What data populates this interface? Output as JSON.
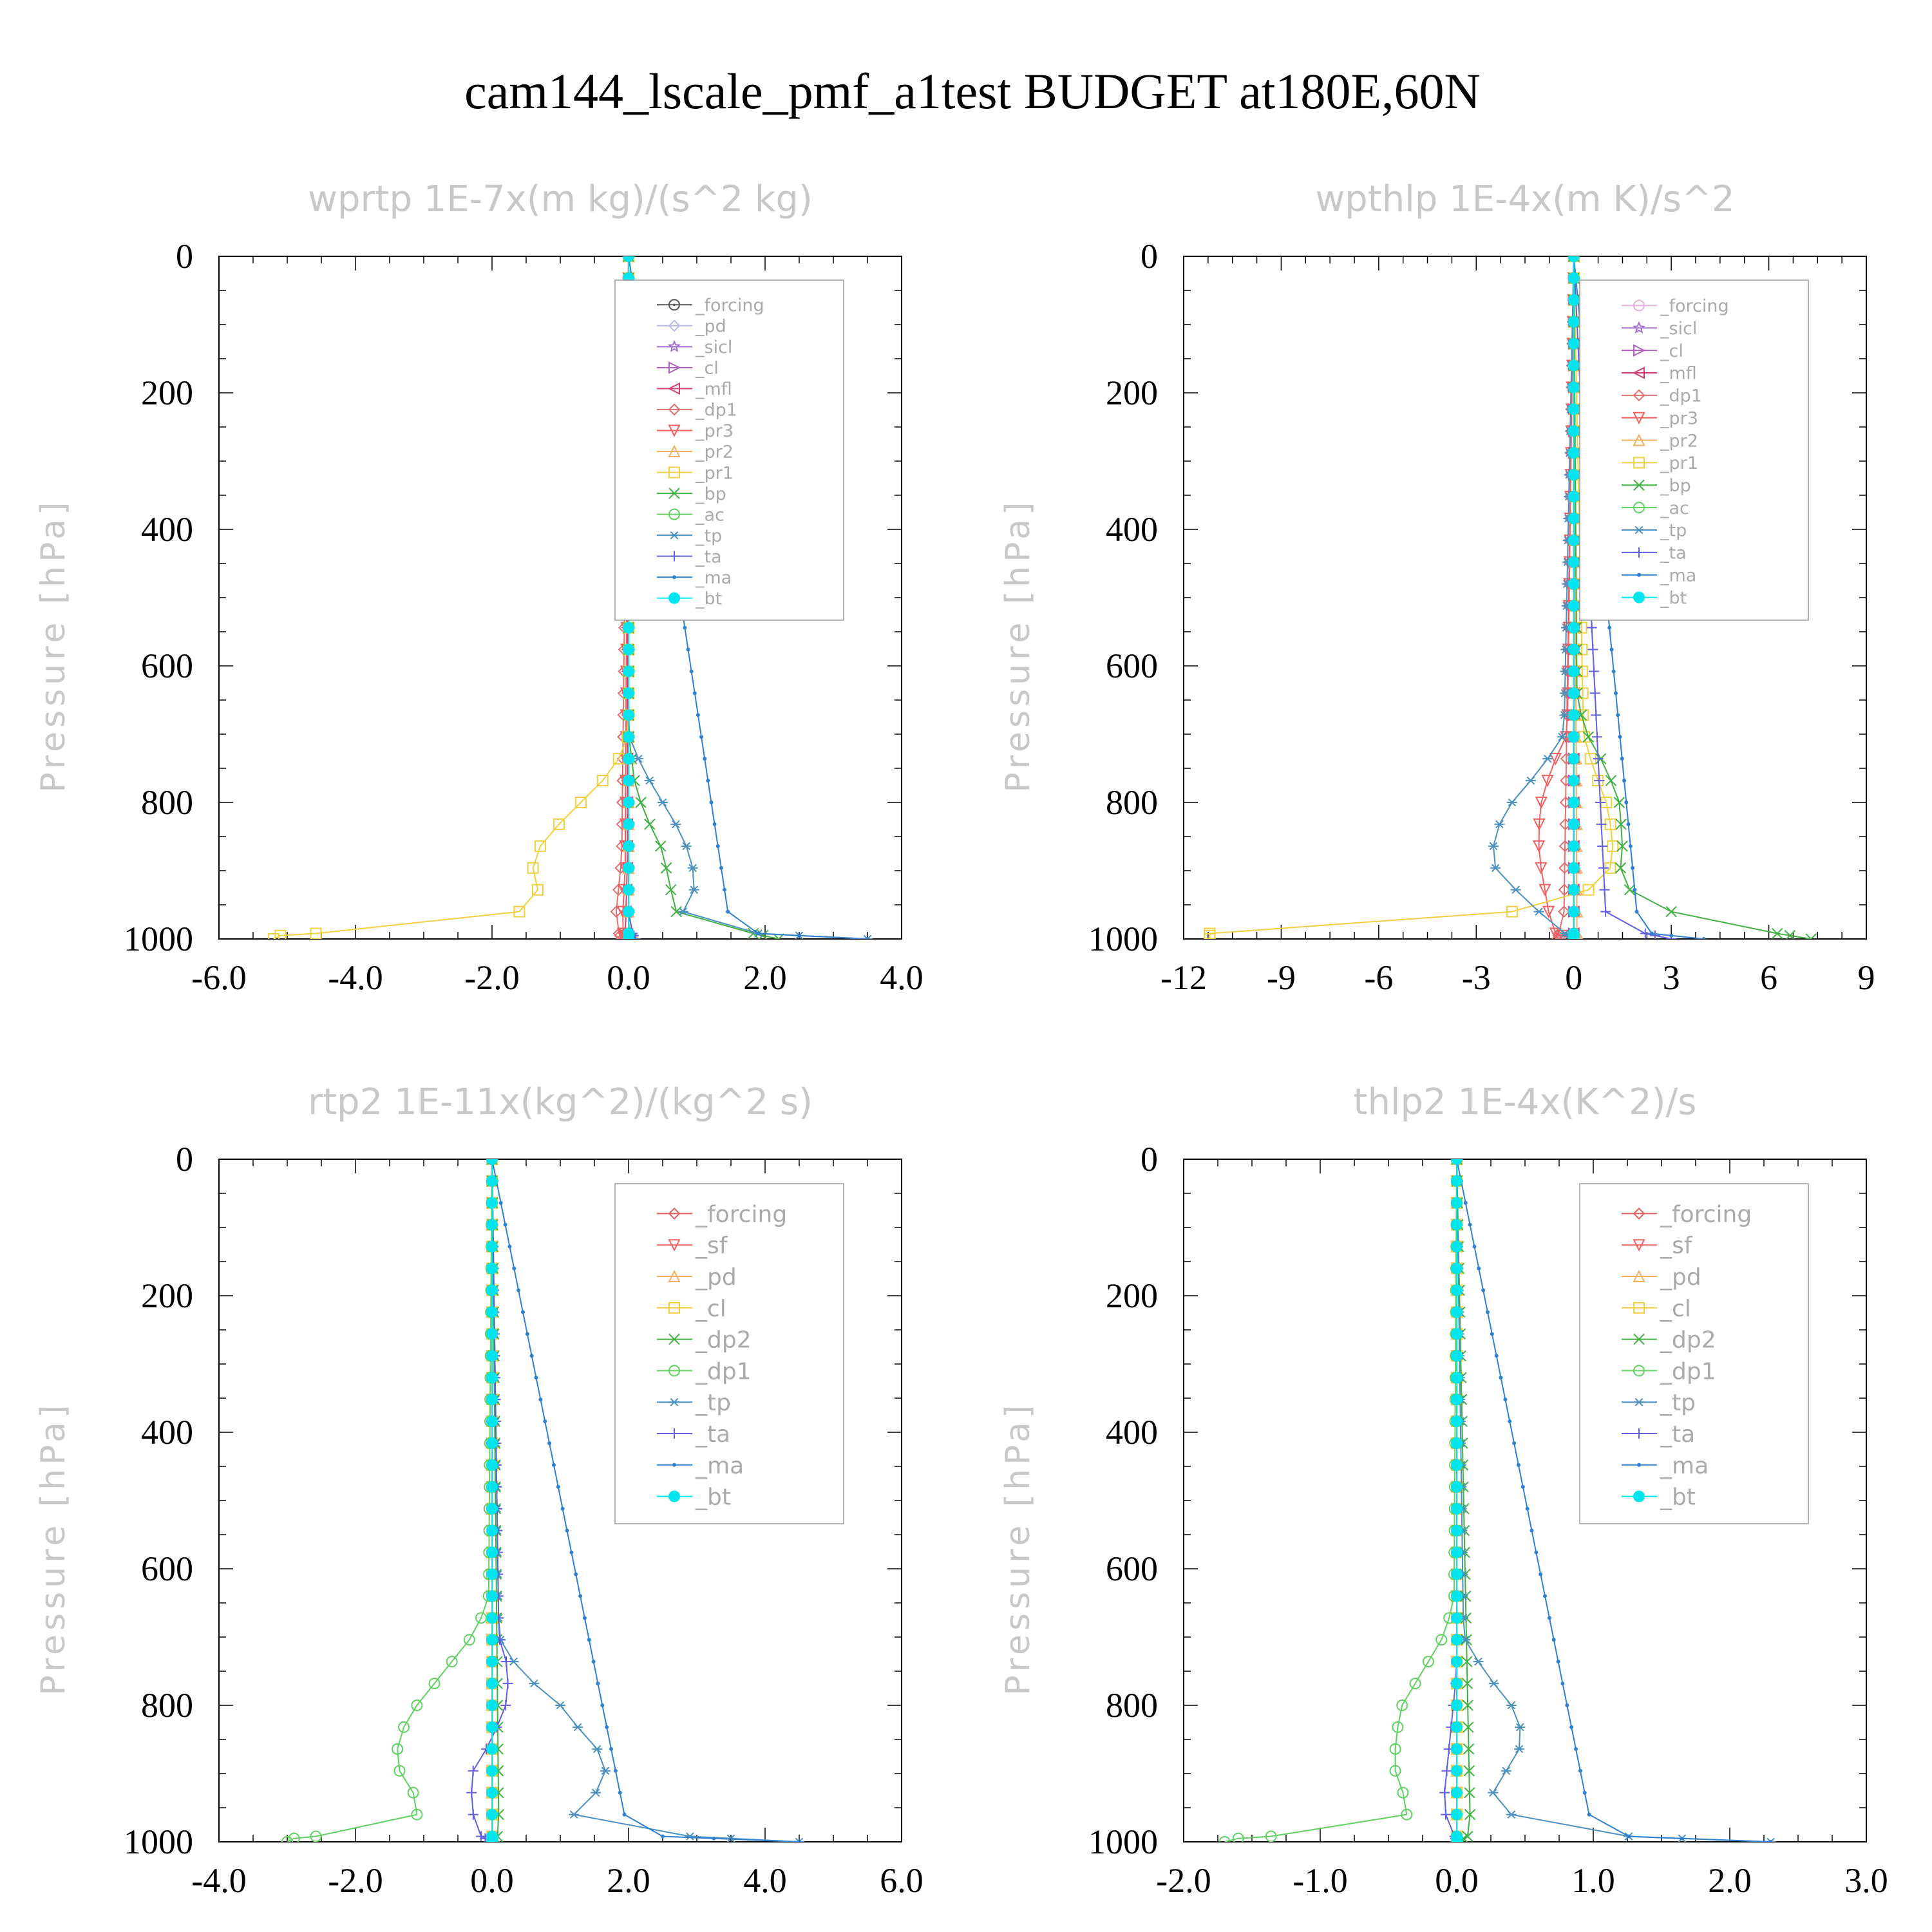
{
  "figure_title": "cam144_lscale_pmf_a1test  BUDGET at180E,60N",
  "chart_data": [
    {
      "type": "line",
      "title": "wprtp  1E-7x(m kg)/(s^2 kg)",
      "ylabel": "Pressure [hPa]",
      "xlim": [
        -6.0,
        4.0
      ],
      "ylim": [
        1000,
        0
      ],
      "xticks": [
        "-6.0",
        "-4.0",
        "-2.0",
        "0.0",
        "2.0",
        "4.0"
      ],
      "xtick_values": [
        -6,
        -4,
        -2,
        0,
        2,
        4
      ],
      "yticks": [
        "0",
        "200",
        "400",
        "600",
        "800",
        "1000"
      ],
      "ytick_values": [
        0,
        200,
        400,
        600,
        800,
        1000
      ],
      "legend_position": "top-right",
      "series": [
        {
          "name": "_forcing",
          "color": "#555555",
          "marker": "circle-dot",
          "y": [
            0,
            800,
            900,
            1000
          ],
          "x": [
            0,
            0,
            0,
            0
          ]
        },
        {
          "name": "_pd",
          "color": "#b8b8f0",
          "marker": "diamond",
          "y": [
            0,
            800,
            1000
          ],
          "x": [
            0,
            0,
            0
          ]
        },
        {
          "name": "_sicl",
          "color": "#a070d0",
          "marker": "star",
          "y": [
            0,
            800,
            1000
          ],
          "x": [
            0,
            0,
            0
          ]
        },
        {
          "name": "_cl",
          "color": "#b060c0",
          "marker": "tri-right",
          "y": [
            0,
            800,
            1000
          ],
          "x": [
            0,
            0,
            0
          ]
        },
        {
          "name": "_mfl",
          "color": "#d04070",
          "marker": "tri-left",
          "y": [
            0,
            900,
            1000
          ],
          "x": [
            0,
            -0.02,
            -0.05
          ]
        },
        {
          "name": "_dp1",
          "color": "#e07070",
          "marker": "diamond",
          "y": [
            0,
            880,
            980,
            1000
          ],
          "x": [
            0,
            -0.1,
            -0.2,
            -0.1
          ]
        },
        {
          "name": "_pr3",
          "color": "#f06060",
          "marker": "tri-down",
          "y": [
            0,
            900,
            990,
            1000
          ],
          "x": [
            0,
            -0.05,
            -0.1,
            0
          ]
        },
        {
          "name": "_pr2",
          "color": "#f0b060",
          "marker": "tri-up",
          "y": [
            0,
            990,
            1000
          ],
          "x": [
            0,
            0,
            0.1
          ]
        },
        {
          "name": "_pr1",
          "color": "#f0d040",
          "marker": "square",
          "y": [
            0,
            700,
            750,
            800,
            850,
            880,
            900,
            940,
            960,
            980,
            995,
            1000
          ],
          "x": [
            0,
            0,
            -0.2,
            -0.7,
            -1.2,
            -1.4,
            -1.4,
            -1.3,
            -1.6,
            -2.5,
            -5.1,
            -5.2
          ]
        },
        {
          "name": "_bp",
          "color": "#40b040",
          "marker": "x",
          "y": [
            0,
            700,
            780,
            830,
            870,
            920,
            960,
            985,
            1000
          ],
          "x": [
            0,
            0,
            0.1,
            0.3,
            0.5,
            0.6,
            0.7,
            1.5,
            2.2
          ]
        },
        {
          "name": "_ac",
          "color": "#60d060",
          "marker": "circle",
          "y": [
            0,
            1000
          ],
          "x": [
            0,
            0
          ]
        },
        {
          "name": "_tp",
          "color": "#4a90c0",
          "marker": "asterisk",
          "y": [
            0,
            700,
            750,
            800,
            850,
            880,
            920,
            960,
            990,
            1000
          ],
          "x": [
            0,
            0,
            0.2,
            0.5,
            0.8,
            0.9,
            1.0,
            0.8,
            1.5,
            3.5
          ]
        },
        {
          "name": "_ta",
          "color": "#6060e0",
          "marker": "plus",
          "y": [
            0,
            980,
            1000
          ],
          "x": [
            0,
            0,
            0.1
          ]
        },
        {
          "name": "_ma",
          "color": "#3080d0",
          "marker": "dot",
          "y": [
            0,
            990,
            1000
          ],
          "x": [
            0,
            1.5,
            3.5
          ]
        },
        {
          "name": "_bt",
          "color": "#00e5ee",
          "marker": "filled-circle",
          "y": [
            0,
            1000
          ],
          "x": [
            0,
            0
          ]
        }
      ]
    },
    {
      "type": "line",
      "title": "wpthlp  1E-4x(m K)/s^2",
      "ylabel": "Pressure [hPa]",
      "xlim": [
        -12,
        9
      ],
      "ylim": [
        1000,
        0
      ],
      "xticks": [
        "-12",
        "-9",
        "-6",
        "-3",
        "0",
        "3",
        "6",
        "9"
      ],
      "xtick_values": [
        -12,
        -9,
        -6,
        -3,
        0,
        3,
        6,
        9
      ],
      "yticks": [
        "0",
        "200",
        "400",
        "600",
        "800",
        "1000"
      ],
      "ytick_values": [
        0,
        200,
        400,
        600,
        800,
        1000
      ],
      "legend_position": "top-right",
      "series": [
        {
          "name": "_forcing",
          "color": "#e0b0e0",
          "marker": "circle",
          "y": [
            0,
            1000
          ],
          "x": [
            0,
            0
          ]
        },
        {
          "name": "_sicl",
          "color": "#a070d0",
          "marker": "star",
          "y": [
            0,
            1000
          ],
          "x": [
            0,
            0
          ]
        },
        {
          "name": "_cl",
          "color": "#b060c0",
          "marker": "tri-right",
          "y": [
            0,
            1000
          ],
          "x": [
            0,
            0
          ]
        },
        {
          "name": "_mfl",
          "color": "#d04070",
          "marker": "tri-left",
          "y": [
            0,
            1000
          ],
          "x": [
            0,
            0
          ]
        },
        {
          "name": "_dp1",
          "color": "#e07070",
          "marker": "diamond",
          "y": [
            0,
            960,
            1000
          ],
          "x": [
            0,
            -0.3,
            -0.5
          ]
        },
        {
          "name": "_pr3",
          "color": "#f06060",
          "marker": "tri-down",
          "y": [
            0,
            700,
            750,
            800,
            850,
            900,
            950,
            990,
            1000
          ],
          "x": [
            0,
            -0.2,
            -0.7,
            -1.0,
            -1.1,
            -1.0,
            -0.8,
            -0.7,
            0
          ]
        },
        {
          "name": "_pr2",
          "color": "#f0b060",
          "marker": "tri-up",
          "y": [
            0,
            1000
          ],
          "x": [
            0,
            0.1
          ]
        },
        {
          "name": "_pr1",
          "color": "#f0d040",
          "marker": "square",
          "y": [
            0,
            700,
            750,
            800,
            850,
            890,
            920,
            950,
            975,
            990,
            1000
          ],
          "x": [
            0,
            0.3,
            0.6,
            1.0,
            1.2,
            1.2,
            0.8,
            -0.5,
            -4,
            -11.2,
            -11.2
          ]
        },
        {
          "name": "_bp",
          "color": "#40b040",
          "marker": "x",
          "y": [
            0,
            650,
            700,
            750,
            800,
            860,
            920,
            960,
            990,
            1000
          ],
          "x": [
            0,
            0.1,
            0.4,
            1.0,
            1.4,
            1.5,
            1.4,
            3.0,
            6.0,
            7.3
          ]
        },
        {
          "name": "_ac",
          "color": "#60d060",
          "marker": "circle",
          "y": [
            0,
            1000
          ],
          "x": [
            0,
            0
          ]
        },
        {
          "name": "_tp",
          "color": "#4a90c0",
          "marker": "asterisk",
          "y": [
            0,
            700,
            750,
            800,
            850,
            900,
            950,
            985,
            1000
          ],
          "x": [
            0,
            -0.3,
            -1.0,
            -1.9,
            -2.5,
            -2.4,
            -1.3,
            -0.5,
            0
          ]
        },
        {
          "name": "_ta",
          "color": "#6060e0",
          "marker": "plus",
          "y": [
            0,
            980,
            1000
          ],
          "x": [
            0,
            1.0,
            3.0
          ]
        },
        {
          "name": "_ma",
          "color": "#3080d0",
          "marker": "dot",
          "y": [
            0,
            990,
            1000
          ],
          "x": [
            0,
            2.0,
            4.0
          ]
        },
        {
          "name": "_bt",
          "color": "#00e5ee",
          "marker": "filled-circle",
          "y": [
            0,
            1000
          ],
          "x": [
            0,
            0
          ]
        }
      ]
    },
    {
      "type": "line",
      "title": "rtp2  1E-11x(kg^2)/(kg^2 s)",
      "ylabel": "Pressure [hPa]",
      "xlim": [
        -4.0,
        6.0
      ],
      "ylim": [
        1000,
        0
      ],
      "xticks": [
        "-4.0",
        "-2.0",
        "0.0",
        "2.0",
        "4.0",
        "6.0"
      ],
      "xtick_values": [
        -4,
        -2,
        0,
        2,
        4,
        6
      ],
      "yticks": [
        "0",
        "200",
        "400",
        "600",
        "800",
        "1000"
      ],
      "ytick_values": [
        0,
        200,
        400,
        600,
        800,
        1000
      ],
      "legend_position": "top-right",
      "series": [
        {
          "name": "_forcing",
          "color": "#e06060",
          "marker": "diamond",
          "y": [
            0,
            1000
          ],
          "x": [
            0,
            0
          ]
        },
        {
          "name": "_sf",
          "color": "#f06060",
          "marker": "tri-down",
          "y": [
            0,
            1000
          ],
          "x": [
            0,
            0
          ]
        },
        {
          "name": "_pd",
          "color": "#f0b060",
          "marker": "tri-up",
          "y": [
            0,
            1000
          ],
          "x": [
            0,
            0
          ]
        },
        {
          "name": "_cl",
          "color": "#f0d040",
          "marker": "square",
          "y": [
            0,
            1000
          ],
          "x": [
            0,
            0
          ]
        },
        {
          "name": "_dp2",
          "color": "#40b040",
          "marker": "x",
          "y": [
            0,
            990,
            1000
          ],
          "x": [
            0,
            0.1,
            0
          ]
        },
        {
          "name": "_dp1",
          "color": "#60d060",
          "marker": "circle",
          "y": [
            0,
            650,
            700,
            750,
            800,
            850,
            900,
            950,
            980,
            995,
            1000
          ],
          "x": [
            0,
            -0.05,
            -0.3,
            -0.7,
            -1.1,
            -1.4,
            -1.35,
            -1.0,
            -1.3,
            -2.9,
            -3.0
          ]
        },
        {
          "name": "_tp",
          "color": "#4a90c0",
          "marker": "asterisk",
          "y": [
            0,
            700,
            750,
            800,
            850,
            880,
            920,
            960,
            990,
            1000
          ],
          "x": [
            0,
            0.1,
            0.4,
            1.0,
            1.4,
            1.7,
            1.6,
            1.2,
            2.5,
            4.5
          ]
        },
        {
          "name": "_ta",
          "color": "#6060e0",
          "marker": "plus",
          "y": [
            0,
            700,
            750,
            800,
            850,
            900,
            950,
            990,
            1000
          ],
          "x": [
            0,
            0.1,
            0.25,
            0.2,
            0,
            -0.3,
            -0.3,
            -0.2,
            0
          ]
        },
        {
          "name": "_ma",
          "color": "#3080d0",
          "marker": "dot",
          "y": [
            0,
            990,
            1000
          ],
          "x": [
            0,
            2.0,
            4.5
          ]
        },
        {
          "name": "_bt",
          "color": "#00e5ee",
          "marker": "filled-circle",
          "y": [
            0,
            1000
          ],
          "x": [
            0,
            0
          ]
        }
      ]
    },
    {
      "type": "line",
      "title": "thlp2  1E-4x(K^2)/s",
      "ylabel": "Pressure [hPa]",
      "xlim": [
        -2.0,
        3.0
      ],
      "ylim": [
        1000,
        0
      ],
      "xticks": [
        "-2.0",
        "-1.0",
        "0.0",
        "1.0",
        "2.0",
        "3.0"
      ],
      "xtick_values": [
        -2,
        -1,
        0,
        1,
        2,
        3
      ],
      "yticks": [
        "0",
        "200",
        "400",
        "600",
        "800",
        "1000"
      ],
      "ytick_values": [
        0,
        200,
        400,
        600,
        800,
        1000
      ],
      "legend_position": "top-right",
      "series": [
        {
          "name": "_forcing",
          "color": "#e06060",
          "marker": "diamond",
          "y": [
            0,
            1000
          ],
          "x": [
            0,
            0
          ]
        },
        {
          "name": "_sf",
          "color": "#f06060",
          "marker": "tri-down",
          "y": [
            0,
            1000
          ],
          "x": [
            0,
            0
          ]
        },
        {
          "name": "_pd",
          "color": "#f0b060",
          "marker": "tri-up",
          "y": [
            0,
            1000
          ],
          "x": [
            0,
            0
          ]
        },
        {
          "name": "_cl",
          "color": "#f0d040",
          "marker": "square",
          "y": [
            0,
            1000
          ],
          "x": [
            0,
            0
          ]
        },
        {
          "name": "_dp2",
          "color": "#40b040",
          "marker": "x",
          "y": [
            0,
            990,
            1000
          ],
          "x": [
            0,
            0.1,
            0
          ]
        },
        {
          "name": "_dp1",
          "color": "#60d060",
          "marker": "circle",
          "y": [
            0,
            650,
            700,
            750,
            800,
            850,
            900,
            950,
            980,
            995,
            1000
          ],
          "x": [
            0,
            -0.02,
            -0.1,
            -0.25,
            -0.4,
            -0.45,
            -0.45,
            -0.35,
            -0.4,
            -1.6,
            -1.7
          ]
        },
        {
          "name": "_tp",
          "color": "#4a90c0",
          "marker": "asterisk",
          "y": [
            0,
            700,
            750,
            800,
            850,
            900,
            950,
            990,
            1000
          ],
          "x": [
            0,
            0.05,
            0.2,
            0.4,
            0.5,
            0.35,
            0.2,
            1.0,
            2.3
          ]
        },
        {
          "name": "_ta",
          "color": "#6060e0",
          "marker": "plus",
          "y": [
            0,
            750,
            850,
            950,
            1000
          ],
          "x": [
            0,
            0,
            -0.05,
            -0.1,
            0
          ]
        },
        {
          "name": "_ma",
          "color": "#3080d0",
          "marker": "dot",
          "y": [
            0,
            990,
            1000
          ],
          "x": [
            0,
            1.0,
            2.3
          ]
        },
        {
          "name": "_bt",
          "color": "#00e5ee",
          "marker": "filled-circle",
          "y": [
            0,
            1000
          ],
          "x": [
            0,
            0
          ]
        }
      ]
    }
  ]
}
